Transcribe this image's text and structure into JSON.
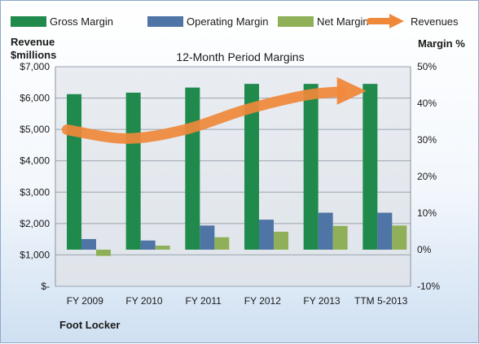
{
  "chart_data": {
    "type": "bar",
    "title": "12-Month Period Margins",
    "company": "Foot Locker",
    "categories": [
      "FY 2009",
      "FY 2010",
      "FY 2011",
      "FY 2012",
      "FY 2013",
      "TTM 5-2013"
    ],
    "y_left": {
      "label_line1": "Revenue",
      "label_line2": "$millions",
      "range": [
        0,
        7000
      ],
      "ticks": [
        0,
        1000,
        2000,
        3000,
        4000,
        5000,
        6000,
        7000
      ],
      "tick_labels": [
        "$-",
        "$1,000",
        "$2,000",
        "$3,000",
        "$4,000",
        "$5,000",
        "$6,000",
        "$7,000"
      ]
    },
    "y_right": {
      "label": "Margin %",
      "range": [
        -10,
        50
      ],
      "ticks": [
        -10,
        0,
        10,
        20,
        30,
        40,
        50
      ],
      "tick_labels": [
        "-10%",
        "0%",
        "10%",
        "20%",
        "30%",
        "40%",
        "50%"
      ]
    },
    "series": [
      {
        "name": "Gross Margin",
        "kind": "bar",
        "color": "#1f8a4c",
        "values": [
          42.5,
          42.9,
          44.3,
          45.3,
          45.3,
          45.3
        ]
      },
      {
        "name": "Operating Margin",
        "kind": "bar",
        "color": "#4f74a6",
        "values": [
          2.9,
          2.5,
          6.6,
          8.2,
          10.1,
          10.1
        ]
      },
      {
        "name": "Net Margin",
        "kind": "bar",
        "color": "#8fb059",
        "values": [
          -1.7,
          1.1,
          3.4,
          4.9,
          6.5,
          6.6
        ]
      },
      {
        "name": "Revenues",
        "kind": "trend-arrow",
        "color": "#f0883a",
        "values": [
          4990,
          4710,
          5000,
          5620,
          6080,
          6200
        ]
      }
    ],
    "grid": true,
    "legend": "top"
  }
}
